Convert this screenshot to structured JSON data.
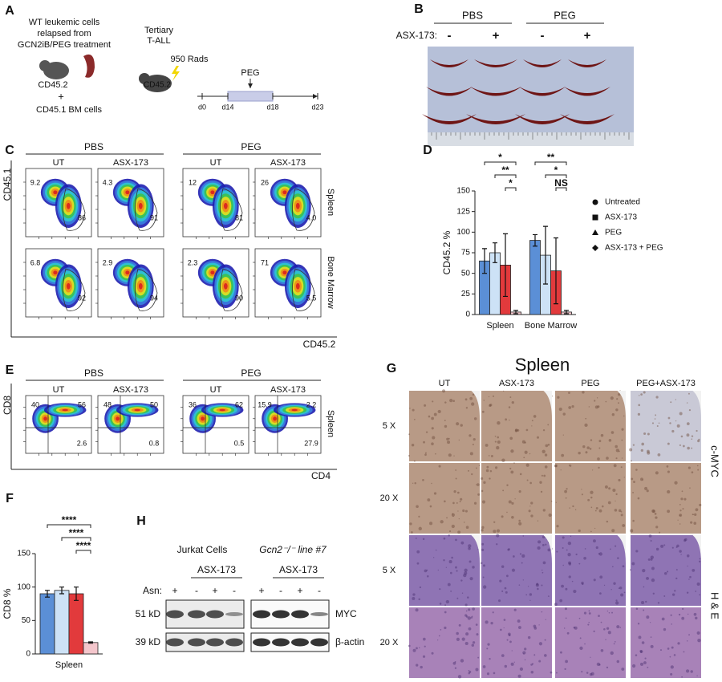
{
  "panel_a": {
    "letter": "A",
    "donor": [
      "WT leukemic cells",
      "relapsed from",
      "GCN2iB/PEG treatment"
    ],
    "donor_marker": "CD45.2",
    "plus": "+",
    "bm_cells": "CD45.1 BM cells",
    "recipient": [
      "Tertiary",
      "T-ALL"
    ],
    "dose": "950 Rads",
    "recipient_marker": "CD45.2",
    "treatment": "PEG",
    "days": [
      "d0",
      "d14",
      "d18",
      "d23"
    ]
  },
  "panel_b": {
    "letter": "B",
    "groups": [
      "PBS",
      "PEG"
    ],
    "drug": "ASX-173:",
    "signs": [
      "-",
      "+",
      "-",
      "+"
    ]
  },
  "panel_c": {
    "letter": "C",
    "groups": [
      "PBS",
      "PEG"
    ],
    "columns": [
      "UT",
      "ASX-173",
      "UT",
      "ASX-173"
    ],
    "rows": [
      "Spleen",
      "Bone Marrow"
    ],
    "y_axis": "CD45.1",
    "x_axis": "CD45.2",
    "gates": [
      [
        [
          "9.2",
          "86"
        ],
        [
          "4.3",
          "91"
        ],
        [
          "12",
          "81"
        ],
        [
          "26",
          "4.0"
        ]
      ],
      [
        [
          "6.8",
          "92"
        ],
        [
          "2.9",
          "94"
        ],
        [
          "2.3",
          "90"
        ],
        [
          "71",
          "5.5"
        ]
      ]
    ]
  },
  "panel_d": {
    "letter": "D",
    "chart_data": {
      "type": "bar",
      "y_label": "CD45.2 %",
      "categories": [
        "Spleen",
        "Bone Marrow"
      ],
      "series": [
        {
          "name": "Untreated",
          "color": "#5b8fd6",
          "marker": "circle",
          "values": [
            65,
            90
          ],
          "errors": [
            15,
            7
          ]
        },
        {
          "name": "ASX-173",
          "color": "#cde2f6",
          "marker": "square",
          "values": [
            75,
            72
          ],
          "errors": [
            12,
            35
          ]
        },
        {
          "name": "PEG",
          "color": "#e23a3c",
          "marker": "triangle",
          "values": [
            60,
            53
          ],
          "errors": [
            38,
            40
          ]
        },
        {
          "name": "ASX-173 + PEG",
          "color": "#f4c6cc",
          "marker": "diamond",
          "values": [
            3,
            3
          ],
          "errors": [
            2,
            2
          ]
        }
      ],
      "ylim": [
        0,
        150
      ],
      "yticks": [
        0,
        25,
        50,
        75,
        100,
        125,
        150
      ],
      "significance": [
        "*",
        "**",
        "*",
        "**",
        "*",
        "NS"
      ]
    }
  },
  "panel_e": {
    "letter": "E",
    "groups": [
      "PBS",
      "PEG"
    ],
    "columns": [
      "UT",
      "ASX-173",
      "UT",
      "ASX-173"
    ],
    "row": "Spleen",
    "y_axis": "CD8",
    "x_axis": "CD4",
    "quadrants": [
      [
        "40",
        "56",
        "2.6"
      ],
      [
        "48",
        "50",
        "0.8"
      ],
      [
        "36",
        "62",
        "0.5"
      ],
      [
        "15.9",
        "2.2",
        "27.9"
      ]
    ]
  },
  "panel_f": {
    "letter": "F",
    "chart_data": {
      "type": "bar",
      "y_label": "CD8 %",
      "categories": [
        "Spleen"
      ],
      "series": [
        {
          "color": "#5b8fd6",
          "values": [
            90
          ],
          "errors": [
            5
          ]
        },
        {
          "color": "#cde2f6",
          "values": [
            95
          ],
          "errors": [
            5
          ]
        },
        {
          "color": "#e23a3c",
          "values": [
            90
          ],
          "errors": [
            10
          ]
        },
        {
          "color": "#f4c6cc",
          "values": [
            17
          ],
          "errors": [
            1
          ]
        }
      ],
      "ylim": [
        0,
        150
      ],
      "yticks": [
        0,
        50,
        100,
        150
      ],
      "significance": [
        "****",
        "****",
        "****"
      ]
    }
  },
  "panel_g": {
    "letter": "G",
    "title": "Spleen",
    "columns": [
      "UT",
      "ASX-173",
      "PEG",
      "PEG+ASX-173"
    ],
    "magnifications": [
      "5 X",
      "20 X",
      "5 X",
      "20 X"
    ],
    "stains": [
      "c-MYC",
      "H & E"
    ]
  },
  "panel_h": {
    "letter": "H",
    "groups": [
      "Jurkat Cells",
      "Gcn2⁻/⁻ line #7"
    ],
    "drug": [
      "ASX-173",
      "ASX-173"
    ],
    "asn_label": "Asn:",
    "asn": [
      "+",
      "-",
      "+",
      "-",
      "+",
      "-",
      "+",
      "-"
    ],
    "sizes": [
      "51 kD",
      "39 kD"
    ],
    "proteins": [
      "MYC",
      "β-actin"
    ]
  }
}
